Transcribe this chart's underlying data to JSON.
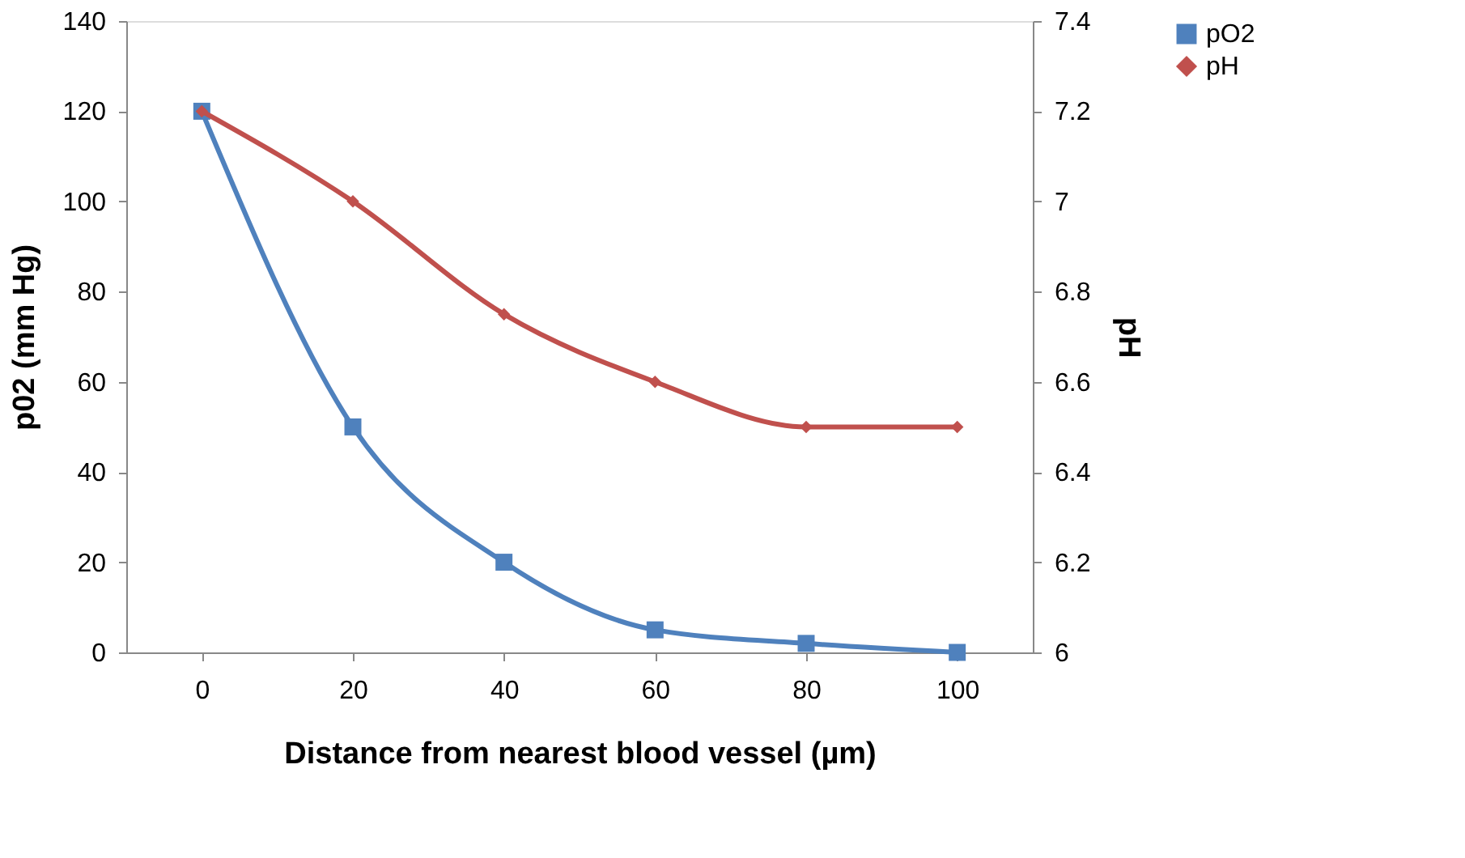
{
  "chart_data": {
    "type": "line",
    "xlabel": "Distance from nearest blood vessel (µm)",
    "ylabel": "p02 (mm Hg)",
    "y2label": "pH",
    "categories": [
      "0",
      "20",
      "40",
      "60",
      "80",
      "100"
    ],
    "series": [
      {
        "name": "pO2",
        "color": "#4f81bd",
        "marker": "square",
        "values": [
          120,
          50,
          20,
          5,
          2,
          0
        ]
      },
      {
        "name": "pH",
        "color": "#c0504d",
        "marker": "diamond",
        "axis": "y2",
        "values": [
          7.2,
          7.0,
          6.75,
          6.6,
          6.5,
          6.5
        ]
      }
    ],
    "ylim": [
      0,
      140
    ],
    "yticks": [
      0,
      20,
      40,
      60,
      80,
      100,
      120,
      140
    ],
    "y2lim": [
      6,
      7.4
    ],
    "y2ticks": [
      6,
      6.2,
      6.4,
      6.6,
      6.8,
      7,
      7.2,
      7.4
    ],
    "grid": false,
    "legend": "right",
    "line_style": "solid"
  }
}
